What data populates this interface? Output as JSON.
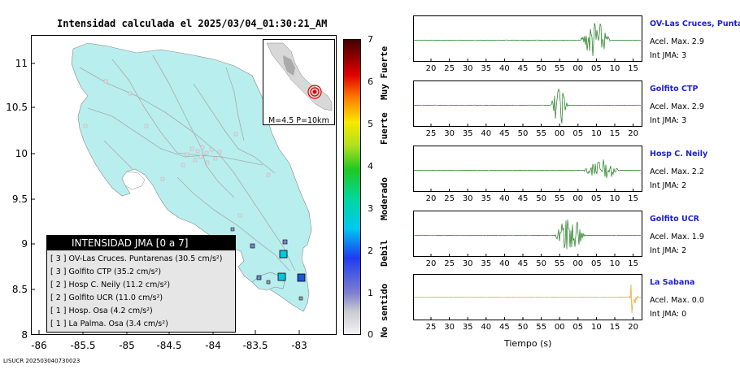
{
  "title": "Intensidad calculada el 2025/03/04_01:30:21_AM",
  "footer": "LISUCR 202503040730023",
  "map": {
    "lat_ticks": [
      "11",
      "10.5",
      "10",
      "9.5",
      "9",
      "8.5",
      "8"
    ],
    "lon_ticks": [
      "-86",
      "-85.5",
      "-85",
      "-84.5",
      "-84",
      "-83.5",
      "-83"
    ],
    "land_color": "#b8eeee"
  },
  "inset": {
    "caption": "M=4.5 P=10km"
  },
  "legend": {
    "header": "INTENSIDAD JMA [0 a 7]",
    "rows": [
      {
        "text": "[ 3 ]  OV-Las Cruces. Puntarenas (30.5 cm/s²)"
      },
      {
        "text": "[ 3 ]  Golfito CTP (35.2 cm/s²)"
      },
      {
        "text": "[ 2 ]  Hosp C. Neily (11.2 cm/s²)"
      },
      {
        "text": "[ 2 ]  Golfito UCR (11.0 cm/s²)"
      },
      {
        "text": "[ 1 ]  Hosp. Osa (4.2 cm/s²)"
      },
      {
        "text": "[ 1 ]  La Palma. Osa (3.4 cm/s²)"
      }
    ]
  },
  "colorbar": {
    "ticks": [
      "7",
      "6",
      "5",
      "4",
      "3",
      "2",
      "1",
      "0"
    ],
    "labels": [
      "Muy Fuerte",
      "Fuerte",
      "Moderado",
      "Debil",
      "No sentido"
    ]
  },
  "stations": [
    {
      "name": "OV-Las Cruces, Puntar",
      "acel": "Acel. Max. 2.9",
      "jma": "Int JMA: 3",
      "color": "#1a7a1a",
      "ticks": [
        "20",
        "25",
        "30",
        "35",
        "40",
        "45",
        "50",
        "55",
        "00",
        "05",
        "10",
        "15"
      ]
    },
    {
      "name": "Golfito CTP",
      "acel": "Acel. Max. 2.9",
      "jma": "Int JMA: 3",
      "color": "#1a7a1a",
      "ticks": [
        "25",
        "30",
        "35",
        "40",
        "45",
        "50",
        "55",
        "00",
        "05",
        "10",
        "15",
        "20"
      ]
    },
    {
      "name": "Hosp C. Neily",
      "acel": "Acel. Max. 2.2",
      "jma": "Int JMA: 2",
      "color": "#1a7a1a",
      "ticks": [
        "20",
        "25",
        "30",
        "35",
        "40",
        "45",
        "50",
        "55",
        "00",
        "05",
        "10",
        "15"
      ]
    },
    {
      "name": "Golfito UCR",
      "acel": "Acel. Max. 1.9",
      "jma": "Int JMA: 2",
      "color": "#1a7a1a",
      "ticks": [
        "20",
        "25",
        "30",
        "35",
        "40",
        "45",
        "50",
        "55",
        "00",
        "05",
        "10",
        "15"
      ]
    },
    {
      "name": "La Sabana",
      "acel": "Acel. Max. 0.0",
      "jma": "Int JMA: 0",
      "color": "#f0a020",
      "ticks": [
        "25",
        "30",
        "35",
        "40",
        "45",
        "50",
        "55",
        "00",
        "05",
        "10",
        "15",
        "20"
      ]
    }
  ],
  "xaxis_title": "Tiempo (s)"
}
